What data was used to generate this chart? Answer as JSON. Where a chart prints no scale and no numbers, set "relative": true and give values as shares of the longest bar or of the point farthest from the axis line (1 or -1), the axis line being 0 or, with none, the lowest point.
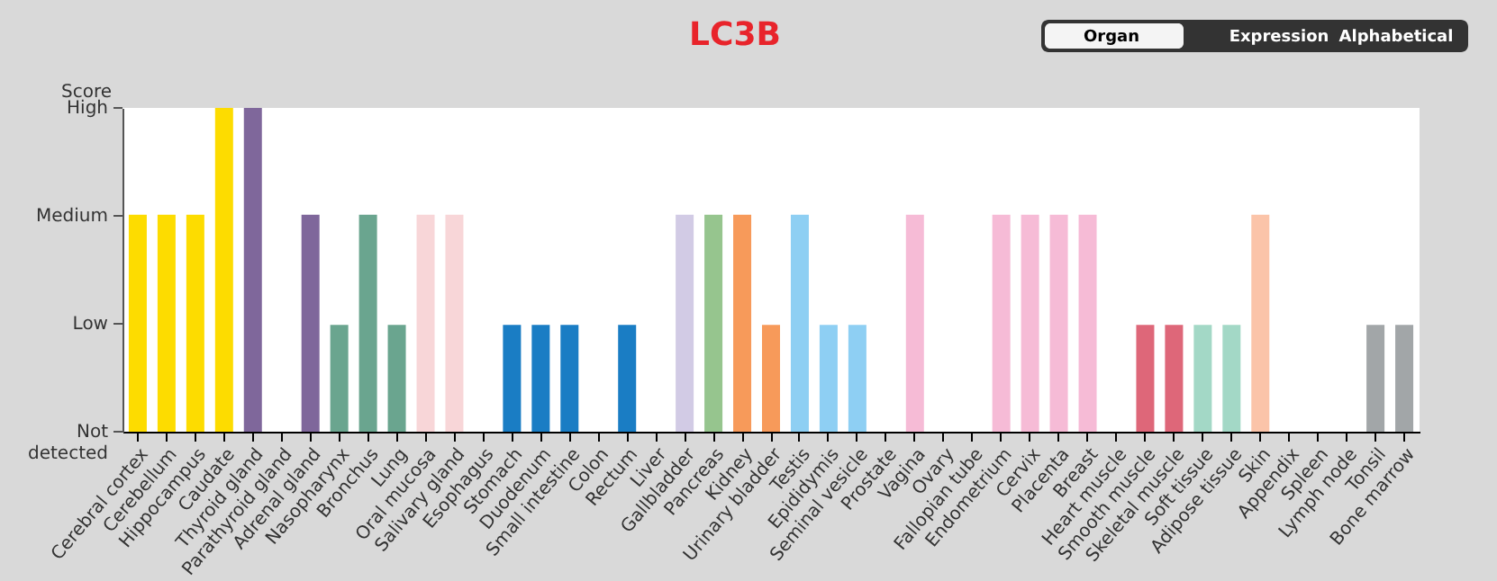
{
  "chart_data": {
    "type": "bar",
    "title": "LC3B",
    "ylabel": "Score",
    "categories": [
      "Cerebral cortex",
      "Cerebellum",
      "Hippocampus",
      "Caudate",
      "Thyroid gland",
      "Parathyroid gland",
      "Adrenal gland",
      "Nasopharynx",
      "Bronchus",
      "Lung",
      "Oral mucosa",
      "Salivary gland",
      "Esophagus",
      "Stomach",
      "Duodenum",
      "Small intestine",
      "Colon",
      "Rectum",
      "Liver",
      "Gallbladder",
      "Pancreas",
      "Kidney",
      "Urinary bladder",
      "Testis",
      "Epididymis",
      "Seminal vesicle",
      "Prostate",
      "Vagina",
      "Ovary",
      "Fallopian tube",
      "Endometrium",
      "Cervix",
      "Placenta",
      "Breast",
      "Heart muscle",
      "Smooth muscle",
      "Skeletal muscle",
      "Soft tissue",
      "Adipose tissue",
      "Skin",
      "Appendix",
      "Spleen",
      "Lymph node",
      "Tonsil",
      "Bone marrow"
    ],
    "relative": true,
    "values": [
      0.67,
      0.67,
      0.67,
      1,
      1,
      0,
      0.67,
      0.33,
      0.67,
      0.33,
      0.67,
      0.67,
      0,
      0.33,
      0.33,
      0.33,
      0,
      0.33,
      0,
      0.67,
      0.67,
      0.67,
      0.33,
      0.67,
      0.33,
      0.33,
      0,
      0.67,
      0,
      0,
      0.67,
      0.67,
      0.67,
      0.67,
      0,
      0.33,
      0.33,
      0.33,
      0.33,
      0.67,
      0,
      0,
      0,
      0.33,
      0.33
    ],
    "colors": [
      "#fddc00",
      "#fddc00",
      "#fddc00",
      "#fddc00",
      "#7f679b",
      "#7f679b",
      "#7f679b",
      "#6aa58f",
      "#6aa58f",
      "#6aa58f",
      "#f8d6d8",
      "#f8d6d8",
      "#f8d6d8",
      "#1a7dc4",
      "#1a7dc4",
      "#1a7dc4",
      "#1a7dc4",
      "#1a7dc4",
      "#d2cbe5",
      "#d2cbe5",
      "#96c58e",
      "#f79a5a",
      "#f79a5a",
      "#8ecff3",
      "#8ecff3",
      "#8ecff3",
      "#8ecff3",
      "#f6bbd6",
      "#f6bbd6",
      "#f6bbd6",
      "#f6bbd6",
      "#f6bbd6",
      "#f6bbd6",
      "#f6bbd6",
      "#de6779",
      "#de6779",
      "#de6779",
      "#a3d8c6",
      "#a3d8c6",
      "#fbc4a9",
      "#a2a6a8",
      "#a2a6a8",
      "#a2a6a8",
      "#a2a6a8",
      "#a2a6a8"
    ],
    "annotations": [
      "Not detected",
      "Low",
      "Medium",
      "High",
      "Organ",
      "Expression",
      "Alphabetical"
    ]
  }
}
